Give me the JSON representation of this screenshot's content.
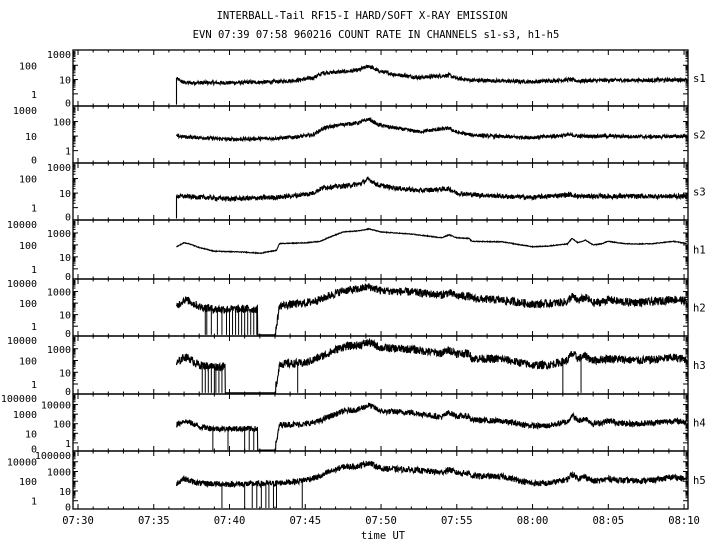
{
  "chart_data": {
    "type": "line",
    "title": "INTERBALL-Tail RF15-I HARD/SOFT X-RAY EMISSION",
    "subtitle": "EVN 07:39 07:58 960216  COUNT RATE IN CHANNELS s1-s3, h1-h5",
    "xlabel": "time UT",
    "x_units": "minutes after 07:30",
    "xlim": [
      -0.33,
      40.26
    ],
    "x_ticks": [
      {
        "x": 0,
        "label": "07:30"
      },
      {
        "x": 5,
        "label": "07:35"
      },
      {
        "x": 10,
        "label": "07:40"
      },
      {
        "x": 15,
        "label": "07:45"
      },
      {
        "x": 20,
        "label": "07:50"
      },
      {
        "x": 25,
        "label": "07:55"
      },
      {
        "x": 30,
        "label": "08:00"
      },
      {
        "x": 35,
        "label": "08:05"
      },
      {
        "x": 40,
        "label": "08:10"
      }
    ],
    "yscale": "log (0 plotted at bottom)",
    "grid": false,
    "panels": [
      {
        "name": "s1",
        "ymax_decade": 3,
        "y_ticks": [
          "1000",
          "100",
          "10",
          "1",
          "0"
        ],
        "noise": 0.13,
        "start_from_zero": true,
        "x": [
          6.5,
          7,
          10,
          13,
          14.5,
          15.5,
          16.2,
          17.5,
          18.5,
          19.2,
          19.8,
          21,
          22.5,
          24.5,
          25,
          26,
          28,
          30,
          32.5,
          33,
          35,
          38,
          40.2
        ],
        "y": [
          12,
          6,
          6,
          7,
          9,
          13,
          30,
          35,
          45,
          90,
          40,
          22,
          14,
          20,
          12,
          9,
          8,
          7,
          10,
          8,
          9,
          9,
          10
        ],
        "spikes_to_zero": [],
        "zero_intervals": []
      },
      {
        "name": "s2",
        "ymax_decade": 3,
        "y_ticks": [
          "1000",
          "100",
          "10",
          "1",
          "0"
        ],
        "noise": 0.12,
        "start_from_zero": false,
        "x": [
          6.5,
          7,
          10,
          13,
          14.5,
          15.5,
          16.2,
          17.5,
          18.5,
          19.2,
          19.8,
          21,
          22.5,
          24.5,
          25,
          26,
          28,
          30,
          32.5,
          33,
          35,
          38,
          40.2
        ],
        "y": [
          10,
          9,
          6,
          7,
          9,
          12,
          35,
          65,
          80,
          150,
          60,
          35,
          20,
          35,
          18,
          12,
          9,
          8,
          12,
          10,
          10,
          9,
          10
        ],
        "spikes_to_zero": [],
        "zero_intervals": []
      },
      {
        "name": "s3",
        "ymax_decade": 3,
        "y_ticks": [
          "1000",
          "100",
          "10",
          "1",
          "0"
        ],
        "noise": 0.16,
        "start_from_zero": true,
        "x": [
          6.5,
          7,
          10,
          13,
          14.5,
          15.5,
          16.2,
          17.5,
          18.5,
          19.2,
          19.8,
          21,
          22.5,
          24.5,
          25,
          26,
          28,
          30,
          32.5,
          33,
          35,
          38,
          40.2
        ],
        "y": [
          6,
          6,
          4,
          5,
          7,
          10,
          25,
          30,
          40,
          90,
          35,
          22,
          15,
          20,
          10,
          8,
          6,
          5,
          8,
          6,
          6,
          6,
          6
        ],
        "spikes_to_zero": [],
        "zero_intervals": []
      },
      {
        "name": "h1",
        "ymax_decade": 4,
        "y_ticks": [
          "10000",
          "1000",
          "100",
          "10",
          "1",
          "0"
        ],
        "noise": 0.03,
        "start_from_zero": false,
        "x": [
          6.5,
          7,
          7.3,
          8,
          9,
          11,
          12,
          12.8,
          13.1,
          13.3,
          15,
          16,
          16.5,
          17.5,
          18.5,
          19.2,
          20,
          22,
          24,
          24.5,
          25,
          25.8,
          26,
          28,
          30,
          31,
          32.3,
          32.6,
          33,
          33.5,
          34,
          34.5,
          35,
          36,
          37,
          38,
          39.3,
          40.2
        ],
        "y": [
          70,
          150,
          130,
          60,
          30,
          25,
          20,
          30,
          35,
          130,
          150,
          200,
          400,
          1200,
          1500,
          2200,
          1200,
          800,
          400,
          700,
          400,
          350,
          200,
          180,
          70,
          80,
          120,
          350,
          150,
          250,
          100,
          120,
          200,
          130,
          120,
          130,
          200,
          130
        ],
        "spikes_to_zero": [],
        "zero_intervals": []
      },
      {
        "name": "h2",
        "ymax_decade": 4,
        "y_ticks": [
          "10000",
          "1000",
          "100",
          "10",
          "1",
          "0"
        ],
        "noise": 0.35,
        "start_from_zero": false,
        "x": [
          6.5,
          7,
          7.3,
          8,
          9,
          11,
          11.8,
          13.1,
          13.3,
          15,
          16,
          16.5,
          17.5,
          18.5,
          19.2,
          20,
          22,
          24,
          24.5,
          25,
          25.8,
          26,
          28,
          30,
          31,
          32.3,
          32.6,
          33,
          33.5,
          34,
          34.5,
          35,
          36,
          37,
          38,
          39.3,
          40.2
        ],
        "y": [
          50,
          200,
          160,
          50,
          30,
          30,
          30,
          1,
          60,
          100,
          200,
          400,
          1200,
          1600,
          2600,
          1200,
          900,
          500,
          800,
          400,
          400,
          250,
          180,
          80,
          90,
          130,
          400,
          160,
          300,
          100,
          120,
          200,
          120,
          120,
          130,
          220,
          150
        ],
        "spikes_to_zero": [
          8.4,
          8.5,
          8.8,
          9.2,
          9.5,
          9.8,
          10.0,
          10.2,
          10.4,
          10.6,
          10.8,
          11.0,
          11.2,
          11.4,
          11.6,
          11.8
        ],
        "zero_intervals": [
          [
            11.85,
            13.05
          ]
        ]
      },
      {
        "name": "h3",
        "ymax_decade": 4,
        "y_ticks": [
          "10000",
          "1000",
          "100",
          "10",
          "1",
          "0"
        ],
        "noise": 0.35,
        "start_from_zero": false,
        "x": [
          6.5,
          7,
          7.3,
          8,
          9,
          9.6,
          13.1,
          13.3,
          15,
          16,
          16.5,
          17.5,
          18.5,
          19.2,
          20,
          22,
          24,
          24.5,
          25,
          25.8,
          26,
          28,
          30,
          31,
          32.3,
          32.6,
          33,
          33.5,
          34,
          34.5,
          35,
          36,
          37,
          38,
          39.3,
          40.2
        ],
        "y": [
          50,
          200,
          160,
          40,
          30,
          30,
          1,
          50,
          60,
          200,
          400,
          1500,
          2000,
          3500,
          1200,
          900,
          400,
          800,
          400,
          400,
          150,
          130,
          40,
          40,
          100,
          400,
          150,
          250,
          100,
          120,
          150,
          120,
          100,
          120,
          180,
          120
        ],
        "spikes_to_zero": [
          8.2,
          8.4,
          8.6,
          8.8,
          9.0,
          9.1,
          9.3,
          9.5,
          14.5,
          32.0,
          33.2
        ],
        "zero_intervals": [
          [
            9.7,
            13.05
          ]
        ]
      },
      {
        "name": "h4",
        "ymax_decade": 5,
        "y_ticks": [
          "100000",
          "10000",
          "1000",
          "100",
          "10",
          "1",
          "0"
        ],
        "noise": 0.3,
        "start_from_zero": false,
        "x": [
          6.5,
          7,
          7.3,
          8,
          9,
          11,
          11.8,
          13.1,
          13.3,
          15,
          16,
          16.5,
          17.5,
          18.5,
          19.2,
          20,
          22,
          24,
          24.5,
          25,
          25.8,
          26,
          28,
          30,
          31,
          32.3,
          32.6,
          33,
          33.5,
          34,
          34.5,
          35,
          36,
          37,
          38,
          39.3,
          40.2
        ],
        "y": [
          80,
          200,
          150,
          50,
          30,
          30,
          30,
          1,
          80,
          90,
          200,
          500,
          2000,
          3000,
          9000,
          2000,
          1500,
          500,
          1500,
          600,
          600,
          250,
          180,
          60,
          60,
          150,
          800,
          200,
          350,
          100,
          120,
          200,
          100,
          100,
          130,
          200,
          150
        ],
        "spikes_to_zero": [
          8.9,
          9.9,
          11.0,
          11.3,
          11.6
        ],
        "zero_intervals": [
          [
            11.85,
            13.05
          ]
        ]
      },
      {
        "name": "h5",
        "ymax_decade": 5,
        "y_ticks": [
          "100000",
          "10000",
          "1000",
          "100",
          "10",
          "1",
          "0"
        ],
        "noise": 0.3,
        "start_from_zero": false,
        "x": [
          6.5,
          7,
          7.3,
          8,
          10,
          13,
          14.5,
          16,
          16.5,
          17.5,
          18.5,
          19.2,
          20,
          22,
          24,
          24.5,
          25,
          25.8,
          26,
          28,
          30,
          31,
          32.3,
          32.6,
          33,
          33.5,
          34,
          34.5,
          35,
          36,
          37,
          38,
          39.3,
          40.2
        ],
        "y": [
          60,
          200,
          120,
          60,
          50,
          60,
          100,
          300,
          800,
          3000,
          3500,
          8000,
          2000,
          1500,
          800,
          1600,
          700,
          700,
          350,
          300,
          60,
          60,
          150,
          600,
          200,
          300,
          100,
          120,
          180,
          120,
          110,
          130,
          280,
          150
        ],
        "spikes_to_zero": [
          9.5,
          11.0,
          11.5,
          11.8,
          12.1,
          12.4,
          12.6,
          12.9,
          13.1,
          14.8
        ],
        "zero_intervals": []
      }
    ]
  }
}
